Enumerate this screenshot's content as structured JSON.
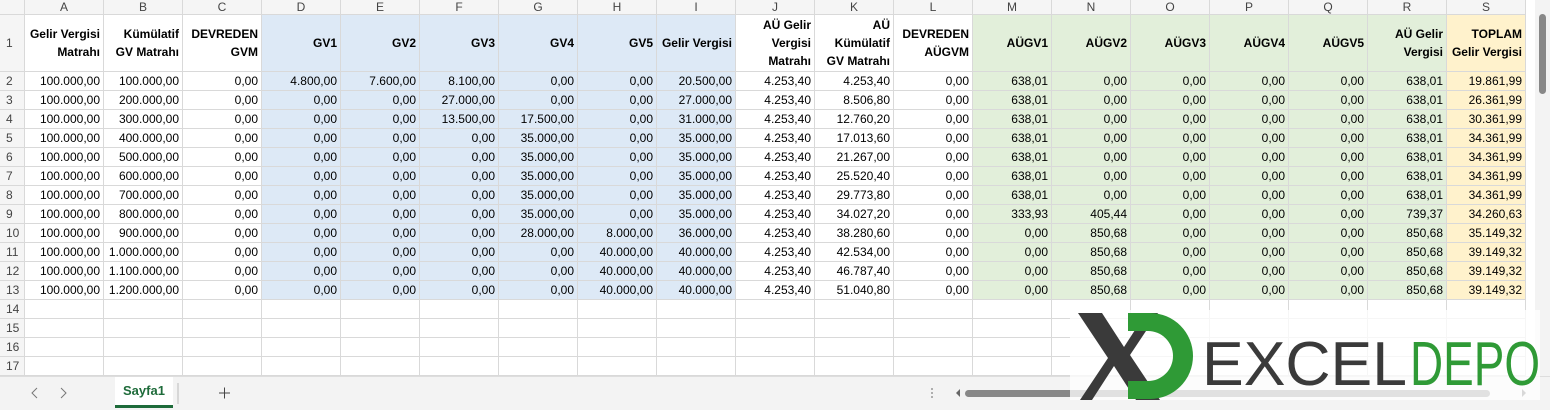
{
  "column_letters": [
    "A",
    "B",
    "C",
    "D",
    "E",
    "F",
    "G",
    "H",
    "I",
    "J",
    "K",
    "L",
    "M",
    "N",
    "O",
    "P",
    "Q",
    "R",
    "S"
  ],
  "row_numbers": [
    1,
    2,
    3,
    4,
    5,
    6,
    7,
    8,
    9,
    10,
    11,
    12,
    13,
    14,
    15,
    16,
    17
  ],
  "table": {
    "header": [
      "Gelir Vergisi Matrahı",
      "Kümülatif GV Matrahı",
      "DEVREDEN GVM",
      "GV1",
      "GV2",
      "GV3",
      "GV4",
      "GV5",
      "Gelir Vergisi",
      "AÜ Gelir Vergisi Matrahı",
      "AÜ Kümülatif GV Matrahı",
      "DEVREDEN AÜGVM",
      "AÜGV1",
      "AÜGV2",
      "AÜGV3",
      "AÜGV4",
      "AÜGV5",
      "AÜ Gelir Vergisi",
      "TOPLAM Gelir Vergisi"
    ],
    "rows": [
      [
        "100.000,00",
        "100.000,00",
        "0,00",
        "4.800,00",
        "7.600,00",
        "8.100,00",
        "0,00",
        "0,00",
        "20.500,00",
        "4.253,40",
        "4.253,40",
        "0,00",
        "638,01",
        "0,00",
        "0,00",
        "0,00",
        "0,00",
        "638,01",
        "19.861,99"
      ],
      [
        "100.000,00",
        "200.000,00",
        "0,00",
        "0,00",
        "0,00",
        "27.000,00",
        "0,00",
        "0,00",
        "27.000,00",
        "4.253,40",
        "8.506,80",
        "0,00",
        "638,01",
        "0,00",
        "0,00",
        "0,00",
        "0,00",
        "638,01",
        "26.361,99"
      ],
      [
        "100.000,00",
        "300.000,00",
        "0,00",
        "0,00",
        "0,00",
        "13.500,00",
        "17.500,00",
        "0,00",
        "31.000,00",
        "4.253,40",
        "12.760,20",
        "0,00",
        "638,01",
        "0,00",
        "0,00",
        "0,00",
        "0,00",
        "638,01",
        "30.361,99"
      ],
      [
        "100.000,00",
        "400.000,00",
        "0,00",
        "0,00",
        "0,00",
        "0,00",
        "35.000,00",
        "0,00",
        "35.000,00",
        "4.253,40",
        "17.013,60",
        "0,00",
        "638,01",
        "0,00",
        "0,00",
        "0,00",
        "0,00",
        "638,01",
        "34.361,99"
      ],
      [
        "100.000,00",
        "500.000,00",
        "0,00",
        "0,00",
        "0,00",
        "0,00",
        "35.000,00",
        "0,00",
        "35.000,00",
        "4.253,40",
        "21.267,00",
        "0,00",
        "638,01",
        "0,00",
        "0,00",
        "0,00",
        "0,00",
        "638,01",
        "34.361,99"
      ],
      [
        "100.000,00",
        "600.000,00",
        "0,00",
        "0,00",
        "0,00",
        "0,00",
        "35.000,00",
        "0,00",
        "35.000,00",
        "4.253,40",
        "25.520,40",
        "0,00",
        "638,01",
        "0,00",
        "0,00",
        "0,00",
        "0,00",
        "638,01",
        "34.361,99"
      ],
      [
        "100.000,00",
        "700.000,00",
        "0,00",
        "0,00",
        "0,00",
        "0,00",
        "35.000,00",
        "0,00",
        "35.000,00",
        "4.253,40",
        "29.773,80",
        "0,00",
        "638,01",
        "0,00",
        "0,00",
        "0,00",
        "0,00",
        "638,01",
        "34.361,99"
      ],
      [
        "100.000,00",
        "800.000,00",
        "0,00",
        "0,00",
        "0,00",
        "0,00",
        "35.000,00",
        "0,00",
        "35.000,00",
        "4.253,40",
        "34.027,20",
        "0,00",
        "333,93",
        "405,44",
        "0,00",
        "0,00",
        "0,00",
        "739,37",
        "34.260,63"
      ],
      [
        "100.000,00",
        "900.000,00",
        "0,00",
        "0,00",
        "0,00",
        "0,00",
        "28.000,00",
        "8.000,00",
        "36.000,00",
        "4.253,40",
        "38.280,60",
        "0,00",
        "0,00",
        "850,68",
        "0,00",
        "0,00",
        "0,00",
        "850,68",
        "35.149,32"
      ],
      [
        "100.000,00",
        "1.000.000,00",
        "0,00",
        "0,00",
        "0,00",
        "0,00",
        "0,00",
        "40.000,00",
        "40.000,00",
        "4.253,40",
        "42.534,00",
        "0,00",
        "0,00",
        "850,68",
        "0,00",
        "0,00",
        "0,00",
        "850,68",
        "39.149,32"
      ],
      [
        "100.000,00",
        "1.100.000,00",
        "0,00",
        "0,00",
        "0,00",
        "0,00",
        "0,00",
        "40.000,00",
        "40.000,00",
        "4.253,40",
        "46.787,40",
        "0,00",
        "0,00",
        "850,68",
        "0,00",
        "0,00",
        "0,00",
        "850,68",
        "39.149,32"
      ],
      [
        "100.000,00",
        "1.200.000,00",
        "0,00",
        "0,00",
        "0,00",
        "0,00",
        "0,00",
        "40.000,00",
        "40.000,00",
        "4.253,40",
        "51.040,80",
        "0,00",
        "0,00",
        "850,68",
        "0,00",
        "0,00",
        "0,00",
        "850,68",
        "39.149,32"
      ]
    ]
  },
  "sheet_tab": "Sayfa1",
  "logo": {
    "left": "EXCEL",
    "right": "DEPO"
  }
}
